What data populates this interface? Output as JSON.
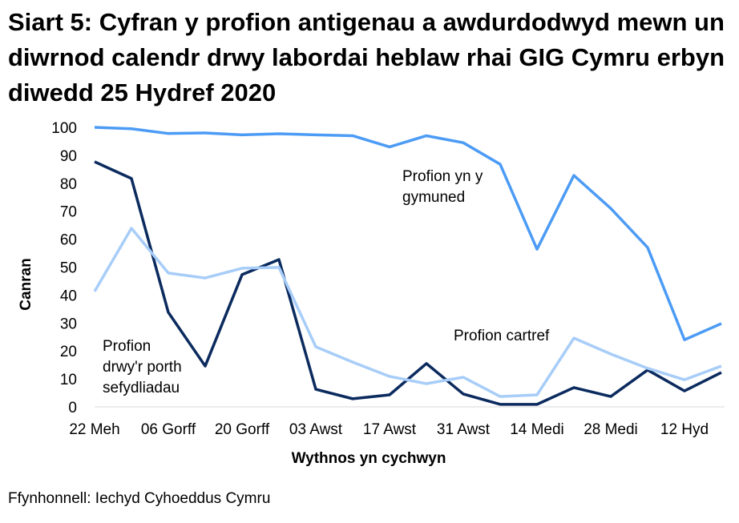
{
  "chart_data": {
    "type": "line",
    "title": "Siart 5: Cyfran y profion antigenau a awdurdodwyd mewn un diwrnod calendr drwy labordai heblaw rhai GIG Cymru erbyn diwedd 25 Hydref 2020",
    "xlabel": "Wythnos yn cychwyn",
    "ylabel": "Canran",
    "ylim": [
      0,
      100
    ],
    "yticks": [
      0,
      10,
      20,
      30,
      40,
      50,
      60,
      70,
      80,
      90,
      100
    ],
    "x": [
      "22 Meh",
      "29 Meh",
      "06 Gorff",
      "13 Gorff",
      "20 Gorff",
      "27 Gorff",
      "03 Awst",
      "10 Awst",
      "17 Awst",
      "24 Awst",
      "31 Awst",
      "07 Medi",
      "14 Medi",
      "21 Medi",
      "28 Medi",
      "05 Hyd",
      "12 Hyd",
      "19 Hyd"
    ],
    "xtick_labels": [
      "22 Meh",
      "06 Gorff",
      "20 Gorff",
      "03 Awst",
      "17 Awst",
      "31 Awst",
      "14 Medi",
      "28 Medi",
      "12 Hyd"
    ],
    "grid": false,
    "series": [
      {
        "name": "Profion yn y gymuned",
        "color": "#4c9bf5",
        "values": [
          100,
          99.5,
          97.8,
          98,
          97.3,
          97.7,
          97.3,
          97,
          93,
          97,
          94.5,
          86.8,
          56.4,
          82.8,
          71,
          57,
          24,
          29.8
        ]
      },
      {
        "name": "Profion drwy'r porth sefydliadau",
        "color": "#0b2a5e",
        "values": [
          87.7,
          81.7,
          33.8,
          14.6,
          47.3,
          52.7,
          6.3,
          2.9,
          4.3,
          15.5,
          4.6,
          0.9,
          0.9,
          6.9,
          3.7,
          13.2,
          5.7,
          12.3
        ]
      },
      {
        "name": "Profion cartref",
        "color": "#a7cdf8",
        "values": [
          41.3,
          63.9,
          47.9,
          46.1,
          49.6,
          49.9,
          21.5,
          16,
          10.9,
          8.3,
          10.6,
          3.7,
          4.3,
          24.6,
          18.9,
          13.8,
          9.7,
          14.6
        ]
      }
    ],
    "series_labels": [
      {
        "lines": [
          "Profion yn y",
          "gymuned"
        ]
      },
      {
        "lines": [
          "Profion",
          "drwy'r porth",
          "sefydliadau"
        ]
      },
      {
        "lines": [
          "Profion cartref"
        ]
      }
    ]
  },
  "source": "Ffynhonnell: Iechyd Cyhoeddus Cymru"
}
